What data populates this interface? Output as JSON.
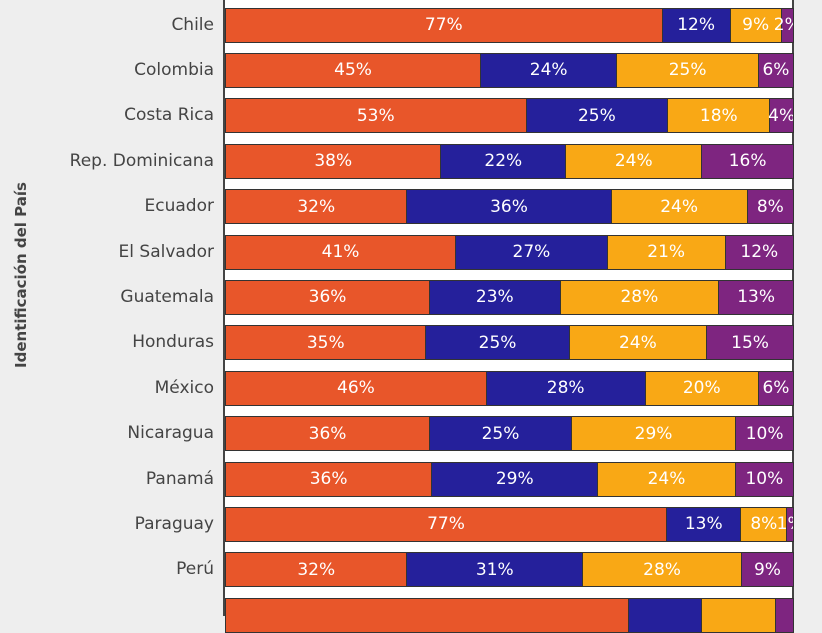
{
  "chart_data": {
    "type": "bar",
    "orientation": "horizontal",
    "stacked": "percent",
    "ylabel": "Identificación del País",
    "xlim": [
      0,
      100
    ],
    "series_colors": [
      "#E8562A",
      "#25209B",
      "#F9A815",
      "#7E2580"
    ],
    "categories": [
      "Chile",
      "Colombia",
      "Costa Rica",
      "Rep. Dominicana",
      "Ecuador",
      "El Salvador",
      "Guatemala",
      "Honduras",
      "México",
      "Nicaragua",
      "Panamá",
      "Paraguay",
      "Perú",
      ""
    ],
    "series": [
      {
        "values": [
          77,
          45,
          53,
          38,
          32,
          41,
          36,
          35,
          46,
          36,
          36,
          77,
          32,
          71
        ]
      },
      {
        "values": [
          12,
          24,
          25,
          22,
          36,
          27,
          23,
          25,
          28,
          25,
          29,
          13,
          31,
          13
        ]
      },
      {
        "values": [
          9,
          25,
          18,
          24,
          24,
          21,
          28,
          24,
          20,
          29,
          24,
          8,
          28,
          13
        ]
      },
      {
        "values": [
          2,
          6,
          4,
          16,
          8,
          12,
          13,
          15,
          6,
          10,
          10,
          1,
          9,
          3
        ]
      }
    ],
    "labels_visible_rows": 13
  }
}
